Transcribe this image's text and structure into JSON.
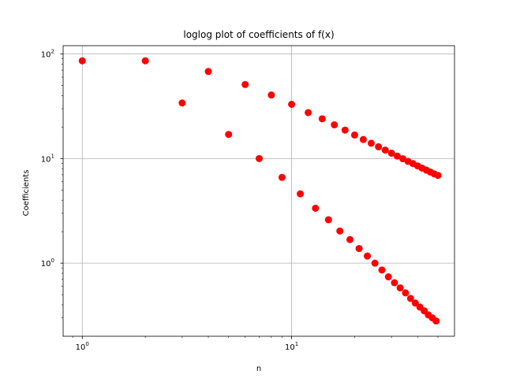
{
  "chart_data": {
    "type": "scatter",
    "title": "loglog plot of coefficients of f(x)",
    "xlabel": "n",
    "ylabel": "Coefficients",
    "xscale": "log",
    "yscale": "log",
    "xlim": [
      0.81,
      60.0
    ],
    "ylim": [
      0.2,
      120
    ],
    "grid": true,
    "marker_color": "#ff0000",
    "x_ticks": [
      {
        "base": "10",
        "exp": "0",
        "value": 1
      },
      {
        "base": "10",
        "exp": "1",
        "value": 10
      }
    ],
    "y_ticks": [
      {
        "base": "10",
        "exp": "0",
        "value": 1
      },
      {
        "base": "10",
        "exp": "1",
        "value": 10
      },
      {
        "base": "10",
        "exp": "2",
        "value": 100
      }
    ],
    "series": [
      {
        "x": [
          1,
          2,
          3,
          4,
          5,
          6,
          7,
          8,
          9,
          10,
          11,
          12,
          13,
          14,
          15,
          16,
          17,
          18,
          19,
          20,
          21,
          22,
          23,
          24,
          25,
          26,
          27,
          28,
          29,
          30,
          31,
          32,
          33,
          34,
          35,
          36,
          37,
          38,
          39,
          40,
          41,
          42,
          43,
          44,
          45,
          46,
          47,
          48,
          49,
          50
        ],
        "y": [
          86,
          86,
          34,
          68,
          17,
          51,
          10,
          40.5,
          6.6,
          33,
          4.6,
          27.5,
          3.35,
          24,
          2.6,
          21,
          2.03,
          18.7,
          1.68,
          16.8,
          1.38,
          15.2,
          1.17,
          14,
          1.0,
          12.95,
          0.86,
          12.05,
          0.74,
          11.25,
          0.65,
          10.55,
          0.58,
          9.95,
          0.52,
          9.4,
          0.46,
          8.95,
          0.415,
          8.5,
          0.38,
          8.1,
          0.35,
          7.75,
          0.32,
          7.43,
          0.3,
          7.13,
          0.28,
          6.9
        ]
      }
    ]
  }
}
